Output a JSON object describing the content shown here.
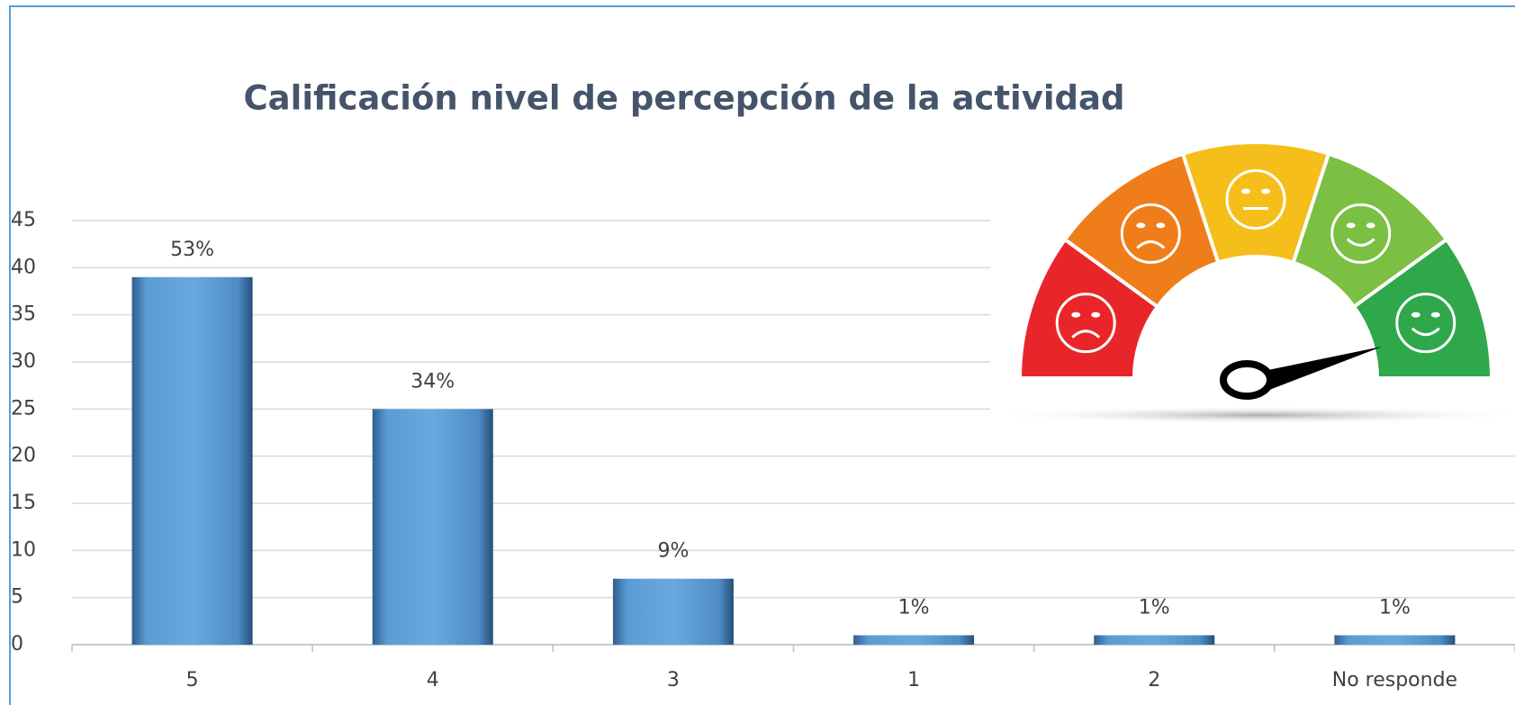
{
  "chart_data": {
    "type": "bar",
    "title": "Calificación nivel de percepción de la actividad",
    "categories": [
      "5",
      "4",
      "3",
      "1",
      "2",
      "No responde"
    ],
    "values": [
      39,
      25,
      7,
      1,
      1,
      1
    ],
    "value_labels": [
      "53%",
      "34%",
      "9%",
      "1%",
      "1%",
      "1%"
    ],
    "color": "#5b9bd5",
    "ylim": [
      0,
      45
    ],
    "yticks": [
      0,
      5,
      10,
      15,
      20,
      25,
      30,
      35,
      40,
      45
    ],
    "grid": true
  }
}
